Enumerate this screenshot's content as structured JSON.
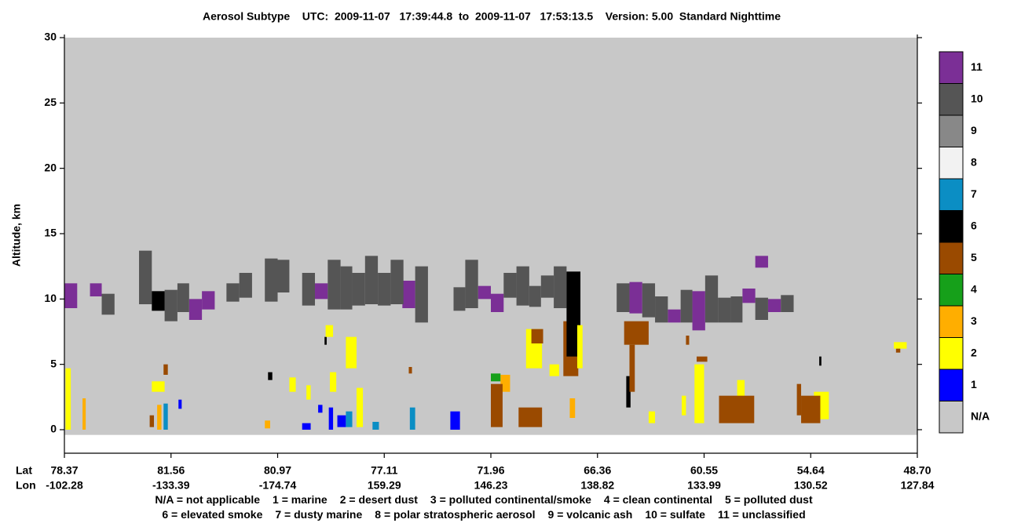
{
  "chart_data": {
    "type": "curtain",
    "title": "Aerosol Subtype    UTC:  2009-11-07   17:39:44.8  to  2009-11-07   17:53:13.5    Version: 5.00  Standard Nighttime",
    "ylabel": "Altitude, km",
    "ylim": [
      -1.8,
      30
    ],
    "yticks": [
      0,
      5,
      10,
      15,
      20,
      25,
      30
    ],
    "xlim": [
      0,
      8
    ],
    "lat_label": "Lat",
    "lon_label": "Lon",
    "xticks": [
      {
        "value": 0,
        "lat": "78.37",
        "lon": "-102.28"
      },
      {
        "value": 1,
        "lat": "81.56",
        "lon": "-133.39"
      },
      {
        "value": 2,
        "lat": "80.97",
        "lon": "-174.74"
      },
      {
        "value": 3,
        "lat": "77.11",
        "lon": "159.29"
      },
      {
        "value": 4,
        "lat": "71.96",
        "lon": "146.23"
      },
      {
        "value": 5,
        "lat": "66.36",
        "lon": "138.82"
      },
      {
        "value": 6,
        "lat": "60.55",
        "lon": "133.99"
      },
      {
        "value": 7,
        "lat": "54.64",
        "lon": "130.52"
      },
      {
        "value": 8,
        "lat": "48.70",
        "lon": "127.84"
      }
    ],
    "classes": [
      "N/A",
      "1",
      "2",
      "3",
      "4",
      "5",
      "6",
      "7",
      "8",
      "9",
      "10",
      "11"
    ],
    "class_colors": [
      "#c8c8c8",
      "#0000ff",
      "#ffff00",
      "#ffae00",
      "#16a01a",
      "#9a4a00",
      "#000000",
      "#0b8ec4",
      "#f2f2f2",
      "#888888",
      "#555555",
      "#7b2f96"
    ],
    "class_descriptions": [
      "N/A = not applicable",
      "1 = marine",
      "2 = desert dust",
      "3 = polluted continental/smoke",
      "4 = clean continental",
      "5 = polluted dust",
      "6 = elevated smoke",
      "7 = dusty marine",
      "8 = polar stratospheric aerosol",
      "9 = volcanic ash",
      "10 = sulfate",
      "11 = unclassified"
    ],
    "blocks": [
      {
        "x0": 0,
        "x1": 8,
        "bottom": -0.4,
        "top": 30,
        "subtype": 0
      },
      {
        "x0": 0.0,
        "x1": 0.12,
        "bottom": 9.3,
        "top": 11.2,
        "subtype": 11
      },
      {
        "x0": 0.24,
        "x1": 0.35,
        "bottom": 10.2,
        "top": 11.2,
        "subtype": 11
      },
      {
        "x0": 1.17,
        "x1": 1.29,
        "bottom": 8.4,
        "top": 10.0,
        "subtype": 11
      },
      {
        "x0": 1.29,
        "x1": 1.41,
        "bottom": 9.2,
        "top": 10.6,
        "subtype": 11
      },
      {
        "x0": 2.35,
        "x1": 2.47,
        "bottom": 10.0,
        "top": 11.2,
        "subtype": 11
      },
      {
        "x0": 3.17,
        "x1": 3.29,
        "bottom": 9.3,
        "top": 11.4,
        "subtype": 11
      },
      {
        "x0": 3.88,
        "x1": 4.0,
        "bottom": 10.0,
        "top": 11.0,
        "subtype": 11
      },
      {
        "x0": 4.0,
        "x1": 4.12,
        "bottom": 9.0,
        "top": 10.4,
        "subtype": 11
      },
      {
        "x0": 5.3,
        "x1": 5.42,
        "bottom": 8.9,
        "top": 11.3,
        "subtype": 11
      },
      {
        "x0": 5.66,
        "x1": 5.78,
        "bottom": 8.2,
        "top": 9.2,
        "subtype": 11
      },
      {
        "x0": 5.89,
        "x1": 6.01,
        "bottom": 7.6,
        "top": 10.6,
        "subtype": 11
      },
      {
        "x0": 6.36,
        "x1": 6.48,
        "bottom": 9.7,
        "top": 10.8,
        "subtype": 11
      },
      {
        "x0": 6.48,
        "x1": 6.6,
        "bottom": 12.4,
        "top": 13.3,
        "subtype": 11
      },
      {
        "x0": 6.6,
        "x1": 6.72,
        "bottom": 9.0,
        "top": 10.0,
        "subtype": 11
      },
      {
        "x0": 0.35,
        "x1": 0.47,
        "bottom": 8.8,
        "top": 10.4,
        "subtype": 10
      },
      {
        "x0": 0.7,
        "x1": 0.82,
        "bottom": 9.6,
        "top": 13.7,
        "subtype": 10
      },
      {
        "x0": 0.94,
        "x1": 1.06,
        "bottom": 8.3,
        "top": 10.7,
        "subtype": 10
      },
      {
        "x0": 1.06,
        "x1": 1.17,
        "bottom": 9.0,
        "top": 11.2,
        "subtype": 10
      },
      {
        "x0": 1.52,
        "x1": 1.64,
        "bottom": 9.8,
        "top": 11.2,
        "subtype": 10
      },
      {
        "x0": 1.64,
        "x1": 1.76,
        "bottom": 10.1,
        "top": 12.0,
        "subtype": 10
      },
      {
        "x0": 1.88,
        "x1": 2.0,
        "bottom": 9.8,
        "top": 13.1,
        "subtype": 10
      },
      {
        "x0": 2.0,
        "x1": 2.11,
        "bottom": 10.5,
        "top": 13.0,
        "subtype": 10
      },
      {
        "x0": 2.23,
        "x1": 2.35,
        "bottom": 9.5,
        "top": 12.0,
        "subtype": 10
      },
      {
        "x0": 2.47,
        "x1": 2.59,
        "bottom": 9.2,
        "top": 13.0,
        "subtype": 10
      },
      {
        "x0": 2.59,
        "x1": 2.7,
        "bottom": 9.2,
        "top": 12.5,
        "subtype": 10
      },
      {
        "x0": 2.7,
        "x1": 2.82,
        "bottom": 9.5,
        "top": 12.0,
        "subtype": 10
      },
      {
        "x0": 2.82,
        "x1": 2.94,
        "bottom": 9.6,
        "top": 13.3,
        "subtype": 10
      },
      {
        "x0": 2.94,
        "x1": 3.06,
        "bottom": 9.5,
        "top": 12.0,
        "subtype": 10
      },
      {
        "x0": 3.06,
        "x1": 3.18,
        "bottom": 9.6,
        "top": 13.0,
        "subtype": 10
      },
      {
        "x0": 3.29,
        "x1": 3.41,
        "bottom": 8.2,
        "top": 12.5,
        "subtype": 10
      },
      {
        "x0": 3.65,
        "x1": 3.76,
        "bottom": 9.1,
        "top": 10.9,
        "subtype": 10
      },
      {
        "x0": 3.76,
        "x1": 3.88,
        "bottom": 9.3,
        "top": 13.0,
        "subtype": 10
      },
      {
        "x0": 4.12,
        "x1": 4.24,
        "bottom": 10.1,
        "top": 12.0,
        "subtype": 10
      },
      {
        "x0": 4.24,
        "x1": 4.36,
        "bottom": 9.5,
        "top": 12.5,
        "subtype": 10
      },
      {
        "x0": 4.36,
        "x1": 4.47,
        "bottom": 9.4,
        "top": 11.0,
        "subtype": 10
      },
      {
        "x0": 4.47,
        "x1": 4.59,
        "bottom": 10.1,
        "top": 11.8,
        "subtype": 10
      },
      {
        "x0": 4.59,
        "x1": 4.71,
        "bottom": 9.3,
        "top": 12.5,
        "subtype": 10
      },
      {
        "x0": 5.18,
        "x1": 5.3,
        "bottom": 9.0,
        "top": 11.2,
        "subtype": 10
      },
      {
        "x0": 5.42,
        "x1": 5.54,
        "bottom": 8.6,
        "top": 11.2,
        "subtype": 10
      },
      {
        "x0": 5.54,
        "x1": 5.66,
        "bottom": 8.2,
        "top": 10.2,
        "subtype": 10
      },
      {
        "x0": 5.78,
        "x1": 5.89,
        "bottom": 8.2,
        "top": 10.7,
        "subtype": 10
      },
      {
        "x0": 6.01,
        "x1": 6.13,
        "bottom": 8.2,
        "top": 11.8,
        "subtype": 10
      },
      {
        "x0": 6.13,
        "x1": 6.25,
        "bottom": 8.2,
        "top": 10.1,
        "subtype": 10
      },
      {
        "x0": 6.25,
        "x1": 6.36,
        "bottom": 8.2,
        "top": 10.2,
        "subtype": 10
      },
      {
        "x0": 6.48,
        "x1": 6.6,
        "bottom": 8.4,
        "top": 10.1,
        "subtype": 10
      },
      {
        "x0": 6.72,
        "x1": 6.84,
        "bottom": 9.0,
        "top": 10.3,
        "subtype": 10
      },
      {
        "x0": 0.82,
        "x1": 0.94,
        "bottom": 9.1,
        "top": 10.6,
        "subtype": 6
      },
      {
        "x0": 4.68,
        "x1": 4.82,
        "bottom": 4.1,
        "top": 8.3,
        "subtype": 5
      },
      {
        "x0": 4.71,
        "x1": 4.84,
        "bottom": 5.6,
        "top": 12.1,
        "subtype": 6
      },
      {
        "x0": 1.91,
        "x1": 1.95,
        "bottom": 3.8,
        "top": 4.4,
        "subtype": 6
      },
      {
        "x0": 2.44,
        "x1": 2.46,
        "bottom": 6.5,
        "top": 7.1,
        "subtype": 6
      },
      {
        "x0": 7.08,
        "x1": 7.1,
        "bottom": 4.9,
        "top": 5.6,
        "subtype": 6
      },
      {
        "x0": 5.27,
        "x1": 5.31,
        "bottom": 1.7,
        "top": 4.1,
        "subtype": 6
      },
      {
        "x0": 0.01,
        "x1": 0.06,
        "bottom": 0,
        "top": 4.7,
        "subtype": 2
      },
      {
        "x0": 0.82,
        "x1": 0.94,
        "bottom": 2.9,
        "top": 3.7,
        "subtype": 2
      },
      {
        "x0": 2.11,
        "x1": 2.17,
        "bottom": 2.9,
        "top": 4.0,
        "subtype": 2
      },
      {
        "x0": 2.45,
        "x1": 2.52,
        "bottom": 7.1,
        "top": 8.0,
        "subtype": 2
      },
      {
        "x0": 2.64,
        "x1": 2.74,
        "bottom": 4.7,
        "top": 7.1,
        "subtype": 2
      },
      {
        "x0": 2.74,
        "x1": 2.8,
        "bottom": 0.2,
        "top": 3.2,
        "subtype": 2
      },
      {
        "x0": 2.27,
        "x1": 2.31,
        "bottom": 2.3,
        "top": 3.4,
        "subtype": 2
      },
      {
        "x0": 2.49,
        "x1": 2.55,
        "bottom": 2.9,
        "top": 4.4,
        "subtype": 2
      },
      {
        "x0": 4.33,
        "x1": 4.48,
        "bottom": 4.7,
        "top": 7.7,
        "subtype": 2
      },
      {
        "x0": 4.81,
        "x1": 4.86,
        "bottom": 4.7,
        "top": 8.0,
        "subtype": 2
      },
      {
        "x0": 5.91,
        "x1": 6.0,
        "bottom": 0.5,
        "top": 5.0,
        "subtype": 2
      },
      {
        "x0": 7.03,
        "x1": 7.17,
        "bottom": 0.8,
        "top": 2.9,
        "subtype": 2
      },
      {
        "x0": 7.78,
        "x1": 7.9,
        "bottom": 6.2,
        "top": 6.7,
        "subtype": 2
      },
      {
        "x0": 6.31,
        "x1": 6.38,
        "bottom": 1.1,
        "top": 3.8,
        "subtype": 2
      },
      {
        "x0": 5.48,
        "x1": 5.54,
        "bottom": 0.5,
        "top": 1.4,
        "subtype": 2
      },
      {
        "x0": 5.79,
        "x1": 5.83,
        "bottom": 1.1,
        "top": 2.6,
        "subtype": 2
      },
      {
        "x0": 4.55,
        "x1": 4.64,
        "bottom": 4.1,
        "top": 5.0,
        "subtype": 2
      },
      {
        "x0": 0.17,
        "x1": 0.2,
        "bottom": 0,
        "top": 2.4,
        "subtype": 3
      },
      {
        "x0": 0.87,
        "x1": 0.91,
        "bottom": 0,
        "top": 1.9,
        "subtype": 3
      },
      {
        "x0": 1.88,
        "x1": 1.93,
        "bottom": 0.1,
        "top": 0.7,
        "subtype": 3
      },
      {
        "x0": 4.74,
        "x1": 4.79,
        "bottom": 0.9,
        "top": 2.4,
        "subtype": 3
      },
      {
        "x0": 4.09,
        "x1": 4.18,
        "bottom": 2.9,
        "top": 4.2,
        "subtype": 3
      },
      {
        "x0": 4.0,
        "x1": 4.09,
        "bottom": 3.7,
        "top": 4.3,
        "subtype": 4
      },
      {
        "x0": 0.93,
        "x1": 0.97,
        "bottom": 4.2,
        "top": 5.0,
        "subtype": 5
      },
      {
        "x0": 0.8,
        "x1": 0.84,
        "bottom": 0.2,
        "top": 1.1,
        "subtype": 5
      },
      {
        "x0": 4.38,
        "x1": 4.49,
        "bottom": 6.6,
        "top": 7.7,
        "subtype": 5
      },
      {
        "x0": 5.25,
        "x1": 5.48,
        "bottom": 6.5,
        "top": 8.3,
        "subtype": 5
      },
      {
        "x0": 5.3,
        "x1": 5.35,
        "bottom": 2.9,
        "top": 6.5,
        "subtype": 5
      },
      {
        "x0": 4.0,
        "x1": 4.11,
        "bottom": 0.2,
        "top": 3.5,
        "subtype": 5
      },
      {
        "x0": 6.14,
        "x1": 6.47,
        "bottom": 0.5,
        "top": 2.6,
        "subtype": 5
      },
      {
        "x0": 6.91,
        "x1": 7.09,
        "bottom": 0.5,
        "top": 2.6,
        "subtype": 5
      },
      {
        "x0": 7.8,
        "x1": 7.84,
        "bottom": 5.9,
        "top": 6.2,
        "subtype": 5
      },
      {
        "x0": 4.26,
        "x1": 4.48,
        "bottom": 0.2,
        "top": 1.7,
        "subtype": 5
      },
      {
        "x0": 5.93,
        "x1": 6.03,
        "bottom": 5.2,
        "top": 5.6,
        "subtype": 5
      },
      {
        "x0": 6.87,
        "x1": 6.91,
        "bottom": 1.1,
        "top": 3.5,
        "subtype": 5
      },
      {
        "x0": 5.83,
        "x1": 5.86,
        "bottom": 6.5,
        "top": 7.2,
        "subtype": 5
      },
      {
        "x0": 3.23,
        "x1": 3.26,
        "bottom": 4.3,
        "top": 4.8,
        "subtype": 5
      },
      {
        "x0": 1.07,
        "x1": 1.1,
        "bottom": 1.6,
        "top": 2.3,
        "subtype": 1
      },
      {
        "x0": 2.23,
        "x1": 2.31,
        "bottom": 0,
        "top": 0.5,
        "subtype": 1
      },
      {
        "x0": 2.38,
        "x1": 2.42,
        "bottom": 1.3,
        "top": 1.9,
        "subtype": 1
      },
      {
        "x0": 2.48,
        "x1": 2.52,
        "bottom": 0,
        "top": 1.7,
        "subtype": 1
      },
      {
        "x0": 3.62,
        "x1": 3.71,
        "bottom": 0,
        "top": 1.4,
        "subtype": 1
      },
      {
        "x0": 2.56,
        "x1": 2.64,
        "bottom": 0.2,
        "top": 1.1,
        "subtype": 1
      },
      {
        "x0": 0.93,
        "x1": 0.97,
        "bottom": 0,
        "top": 2.0,
        "subtype": 7
      },
      {
        "x0": 2.89,
        "x1": 2.95,
        "bottom": 0,
        "top": 0.6,
        "subtype": 7
      },
      {
        "x0": 3.24,
        "x1": 3.29,
        "bottom": 0,
        "top": 1.7,
        "subtype": 7
      },
      {
        "x0": 2.64,
        "x1": 2.7,
        "bottom": 0.2,
        "top": 1.4,
        "subtype": 7
      }
    ]
  }
}
